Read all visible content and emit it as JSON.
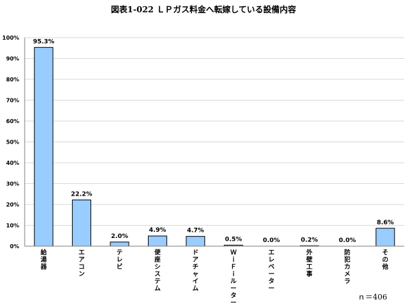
{
  "chart_data": {
    "type": "bar",
    "title": "図表1-022 ＬＰガス料金へ転嫁している設備内容",
    "categories": [
      "給湯器",
      "エアコン",
      "テレビ",
      "便座システム",
      "ドアチャイム",
      "ＷｉＦｉルーター",
      "エレベーター",
      "外壁工事",
      "防犯カメラ",
      "その他"
    ],
    "values": [
      95.3,
      22.2,
      2.0,
      4.9,
      4.7,
      0.5,
      0.0,
      0.2,
      0.0,
      8.6
    ],
    "value_labels": [
      "95.3%",
      "22.2%",
      "2.0%",
      "4.9%",
      "4.7%",
      "0.5%",
      "0.0%",
      "0.2%",
      "0.0%",
      "8.6%"
    ],
    "ylim": [
      0,
      100
    ],
    "yticks": [
      "0%",
      "10%",
      "20%",
      "30%",
      "40%",
      "50%",
      "60%",
      "70%",
      "80%",
      "90%",
      "100%"
    ],
    "xlabel": "",
    "ylabel": "",
    "grid": true,
    "legend": "none",
    "colors": {
      "bar_fill": "#99ccff",
      "bar_stroke": "#000000",
      "grid": "#d9d9d9",
      "axis": "#808080"
    }
  },
  "note": "ｎ＝406"
}
